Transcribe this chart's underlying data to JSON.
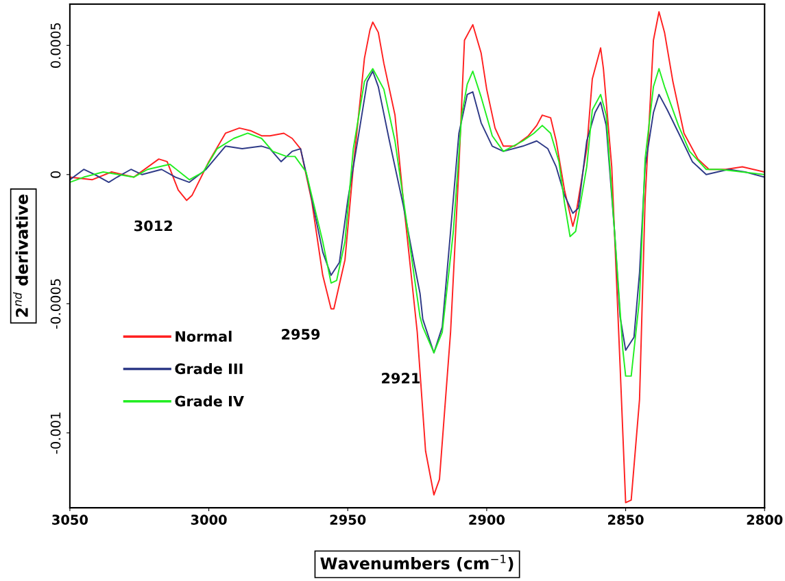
{
  "chart_data": {
    "type": "line",
    "xlabel": "Wavenumbers (cm$^{−1}$)",
    "ylabel": "2$^{nd}$ derivative",
    "xlim": [
      3050,
      2800
    ],
    "xticks": [
      3050,
      3000,
      2950,
      2900,
      2850,
      2800
    ],
    "ylim": [
      -0.00129,
      0.00066
    ],
    "yticks": [
      -0.001,
      -0.0005,
      0,
      0.0005
    ],
    "grid": false,
    "legend": "bottom left",
    "line_style": "solid",
    "marker": "none",
    "annotations": [
      {
        "text": "3012",
        "x": 3008,
        "y": -0.0001
      },
      {
        "text": "2959",
        "x": 2955,
        "y": -0.00052
      },
      {
        "text": "2921",
        "x": 2919,
        "y": -0.00069
      }
    ],
    "series": [
      {
        "name": "Normal",
        "color": "#ff2020",
        "x": [
          3050,
          3042,
          3035,
          3027,
          3018,
          3015,
          3011,
          3008,
          3006,
          3000,
          2994,
          2989,
          2985,
          2981,
          2978,
          2973,
          2970,
          2967,
          2963,
          2959,
          2956,
          2955,
          2951,
          2948,
          2944,
          2942,
          2941,
          2939,
          2937,
          2933,
          2930,
          2925,
          2922,
          2919,
          2917,
          2913,
          2910,
          2908,
          2905,
          2902,
          2900,
          2897,
          2894,
          2890,
          2885,
          2882,
          2880,
          2877,
          2875,
          2872,
          2869,
          2868,
          2864,
          2862,
          2859,
          2858,
          2855,
          2852,
          2850,
          2848,
          2845,
          2843,
          2840,
          2838,
          2836,
          2833,
          2829,
          2824,
          2820,
          2814,
          2808,
          2800
        ],
        "values": [
          -1e-05,
          -2e-05,
          1e-05,
          -1e-05,
          6e-05,
          5e-05,
          -6e-05,
          -0.0001,
          -8e-05,
          5e-05,
          0.00016,
          0.00018,
          0.00017,
          0.00015,
          0.00015,
          0.00016,
          0.00014,
          0.0001,
          -0.0001,
          -0.00039,
          -0.00052,
          -0.00052,
          -0.00033,
          3e-05,
          0.00045,
          0.00056,
          0.00059,
          0.00055,
          0.00043,
          0.00023,
          -0.0001,
          -0.00061,
          -0.00107,
          -0.00124,
          -0.00118,
          -0.00061,
          3e-05,
          0.00052,
          0.00058,
          0.00047,
          0.00033,
          0.00018,
          0.00011,
          0.00011,
          0.00015,
          0.00019,
          0.00023,
          0.00022,
          0.00013,
          -6e-05,
          -0.0002,
          -0.00016,
          0.0001,
          0.00037,
          0.00049,
          0.00041,
          3e-05,
          -0.00074,
          -0.00127,
          -0.00126,
          -0.00087,
          -0.0001,
          0.00052,
          0.00063,
          0.00055,
          0.00036,
          0.00016,
          6e-05,
          2e-05,
          2e-05,
          3e-05,
          1e-05
        ]
      },
      {
        "name": "Grade III",
        "color": "#2e3a87",
        "x": [
          3050,
          3045,
          3041,
          3036,
          3033,
          3028,
          3024,
          3017,
          3012,
          3007,
          3001,
          2994,
          2988,
          2981,
          2978,
          2974,
          2970,
          2967,
          2964,
          2959,
          2956,
          2953,
          2950,
          2946,
          2943,
          2941,
          2939,
          2935,
          2930,
          2926,
          2924,
          2923,
          2919,
          2916,
          2913,
          2910,
          2907,
          2905,
          2902,
          2898,
          2894,
          2887,
          2882,
          2878,
          2875,
          2872,
          2869,
          2867,
          2864,
          2861,
          2859,
          2857,
          2854,
          2852,
          2850,
          2847,
          2845,
          2843,
          2840,
          2838,
          2835,
          2830,
          2826,
          2821,
          2817,
          2813,
          2807,
          2800
        ],
        "values": [
          -2e-05,
          2e-05,
          0.0,
          -3e-05,
          -1e-05,
          2e-05,
          0.0,
          2e-05,
          -1e-05,
          -3e-05,
          2e-05,
          0.00011,
          0.0001,
          0.00011,
          0.0001,
          5e-05,
          9e-05,
          0.0001,
          -4e-05,
          -0.0003,
          -0.00039,
          -0.00034,
          -0.0001,
          0.00016,
          0.00036,
          0.0004,
          0.00034,
          0.00013,
          -0.00012,
          -0.00035,
          -0.00046,
          -0.00056,
          -0.00069,
          -0.00059,
          -0.00022,
          0.00016,
          0.00031,
          0.00032,
          0.0002,
          0.00011,
          9e-05,
          0.00011,
          0.00013,
          0.0001,
          3e-05,
          -8e-05,
          -0.00015,
          -0.00013,
          0.00013,
          0.00024,
          0.00028,
          0.00019,
          -0.00022,
          -0.00055,
          -0.00068,
          -0.00063,
          -0.00038,
          3e-05,
          0.00024,
          0.00031,
          0.00025,
          0.00014,
          5e-05,
          0.0,
          1e-05,
          2e-05,
          1e-05,
          -1e-05
        ]
      },
      {
        "name": "Grade IV",
        "color": "#22ee22",
        "x": [
          3050,
          3045,
          3038,
          3027,
          3022,
          3014,
          3007,
          3002,
          2997,
          2991,
          2986,
          2981,
          2977,
          2972,
          2969,
          2965,
          2959,
          2956,
          2954,
          2951,
          2948,
          2944,
          2941,
          2937,
          2933,
          2929,
          2926,
          2924,
          2923,
          2919,
          2916,
          2912,
          2909,
          2907,
          2905,
          2902,
          2898,
          2894,
          2887,
          2883,
          2880,
          2877,
          2874,
          2872,
          2870,
          2868,
          2864,
          2862,
          2859,
          2857,
          2854,
          2851,
          2850,
          2848,
          2845,
          2843,
          2840,
          2838,
          2836,
          2831,
          2827,
          2821,
          2816,
          2808,
          2800
        ],
        "values": [
          -3e-05,
          -1e-05,
          1e-05,
          -1e-05,
          2e-05,
          4e-05,
          -2e-05,
          1e-05,
          0.0001,
          0.00014,
          0.00016,
          0.00014,
          9e-05,
          7e-05,
          7e-05,
          1e-05,
          -0.00026,
          -0.00042,
          -0.00041,
          -0.00026,
          0.0001,
          0.00036,
          0.00041,
          0.00033,
          0.00013,
          -0.00017,
          -0.0004,
          -0.00055,
          -0.00059,
          -0.00069,
          -0.00061,
          -0.00022,
          0.00023,
          0.00035,
          0.0004,
          0.0003,
          0.00015,
          9e-05,
          0.00013,
          0.00016,
          0.00019,
          0.00016,
          5e-05,
          -0.00011,
          -0.00024,
          -0.00022,
          3e-05,
          0.00025,
          0.00031,
          0.00023,
          -0.00022,
          -0.00068,
          -0.00078,
          -0.00078,
          -0.00048,
          6e-05,
          0.00034,
          0.00041,
          0.00034,
          0.00019,
          9e-05,
          2e-05,
          2e-05,
          1e-05,
          0.0
        ]
      }
    ]
  }
}
